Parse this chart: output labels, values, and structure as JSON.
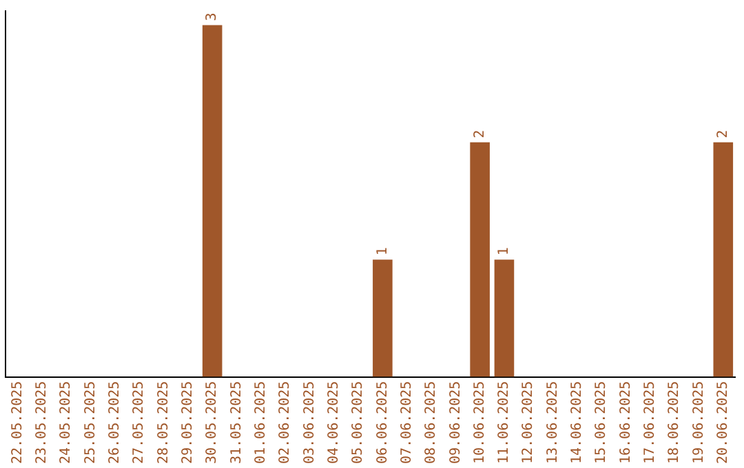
{
  "chart_data": {
    "type": "bar",
    "categories": [
      "22.05.2025",
      "23.05.2025",
      "24.05.2025",
      "25.05.2025",
      "26.05.2025",
      "27.05.2025",
      "28.05.2025",
      "29.05.2025",
      "30.05.2025",
      "31.05.2025",
      "01.06.2025",
      "02.06.2025",
      "03.06.2025",
      "04.06.2025",
      "05.06.2025",
      "06.06.2025",
      "07.06.2025",
      "08.06.2025",
      "09.06.2025",
      "10.06.2025",
      "11.06.2025",
      "12.06.2025",
      "13.06.2025",
      "14.06.2025",
      "15.06.2025",
      "16.06.2025",
      "17.06.2025",
      "18.06.2025",
      "19.06.2025",
      "20.06.2025"
    ],
    "values": [
      0,
      0,
      0,
      0,
      0,
      0,
      0,
      0,
      3,
      0,
      0,
      0,
      0,
      0,
      0,
      1,
      0,
      0,
      0,
      2,
      1,
      0,
      0,
      0,
      0,
      0,
      0,
      0,
      0,
      2
    ],
    "value_labels": [
      null,
      null,
      null,
      null,
      null,
      null,
      null,
      null,
      "3",
      null,
      null,
      null,
      null,
      null,
      null,
      "1",
      null,
      null,
      null,
      "2",
      "1",
      null,
      null,
      null,
      null,
      null,
      null,
      null,
      null,
      "2"
    ],
    "color": "#a0572a",
    "tick_labels": "x",
    "grid": false,
    "legend": false
  }
}
